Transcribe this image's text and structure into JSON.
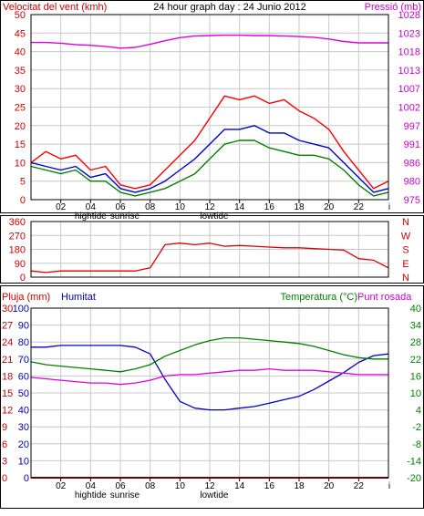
{
  "title": "24 hour graph day : 24 Junio 2012",
  "colors": {
    "frame": "#000000",
    "grid": "#c8c8c8",
    "wind_gust": "#ff0000",
    "wind_avg": "#0000cc",
    "wind_low": "#008000",
    "pressure": "#e000e0",
    "direction": "#dd0000",
    "rain": "#dd0000",
    "humidity": "#0000cc",
    "temperature": "#008000",
    "dewpoint": "#e000e0",
    "left_axis_red": "#cc0000",
    "left_axis_blue": "#0000aa",
    "right_axis_green": "#008000",
    "right_axis_magenta": "#cc00cc"
  },
  "x_axis": {
    "hour_labels": [
      "02",
      "04",
      "06",
      "08",
      "10",
      "12",
      "14",
      "16",
      "18",
      "20",
      "22"
    ],
    "end_tick": "i",
    "events_top": [
      {
        "label": "hightide",
        "hour": 4.0
      },
      {
        "label": "sunrise",
        "hour": 6.3
      },
      {
        "label": "lowtide",
        "hour": 12.3
      }
    ],
    "events_bottom": [
      {
        "label": "hightide",
        "hour": 4.0
      },
      {
        "label": "sunrise",
        "hour": 6.3
      },
      {
        "label": "lowtide",
        "hour": 12.3
      }
    ]
  },
  "chart_data": [
    {
      "type": "line",
      "panel": "wind-pressure",
      "title": "24 hour graph day : 24 Junio 2012",
      "left_label": "Velocitat del vent (kmh)",
      "right_label": "Pressió (mb)",
      "left_ticks": [
        "0",
        "5",
        "10",
        "15",
        "20",
        "25",
        "30",
        "35",
        "40",
        "45",
        "50"
      ],
      "right_ticks": [
        "975",
        "980",
        "986",
        "991",
        "997",
        "1002",
        "1007",
        "1013",
        "1018",
        "1023",
        "1028"
      ],
      "ylim_left": [
        0,
        50
      ],
      "ylim_right": [
        975,
        1028
      ],
      "x": [
        0,
        1,
        2,
        3,
        4,
        5,
        6,
        7,
        8,
        9,
        10,
        11,
        12,
        13,
        14,
        15,
        16,
        17,
        18,
        19,
        20,
        21,
        22,
        23,
        24
      ],
      "series": [
        {
          "name": "gust",
          "axis": "left",
          "values": [
            10,
            13,
            11,
            12,
            8,
            9,
            4,
            3,
            4,
            8,
            12,
            16,
            22,
            28,
            27,
            28,
            26,
            27,
            24,
            22,
            19,
            13,
            8,
            3,
            5
          ]
        },
        {
          "name": "average",
          "axis": "left",
          "values": [
            10,
            9,
            8,
            9,
            6,
            7,
            3,
            2,
            3,
            5,
            8,
            11,
            15,
            19,
            19,
            20,
            18,
            18,
            16,
            15,
            14,
            10,
            6,
            2,
            3
          ]
        },
        {
          "name": "low",
          "axis": "left",
          "values": [
            9,
            8,
            7,
            8,
            5,
            5,
            2,
            1,
            2,
            3,
            5,
            7,
            11,
            15,
            16,
            16,
            14,
            13,
            12,
            12,
            11,
            8,
            4,
            1,
            2
          ]
        },
        {
          "name": "pressure",
          "axis": "right",
          "values": [
            1020.0,
            1020.0,
            1019.8,
            1019.4,
            1019.2,
            1018.9,
            1018.4,
            1018.6,
            1019.5,
            1020.5,
            1021.4,
            1021.9,
            1022.0,
            1022.1,
            1022.1,
            1022.0,
            1022.0,
            1021.9,
            1021.7,
            1021.5,
            1021.0,
            1020.3,
            1019.9,
            1019.9,
            1019.9
          ]
        }
      ]
    },
    {
      "type": "line",
      "panel": "wind-direction",
      "left_ticks": [
        "0",
        "90",
        "180",
        "270",
        "360"
      ],
      "right_ticks": [
        "N",
        "E",
        "S",
        "W",
        "N"
      ],
      "ylim_left": [
        0,
        360
      ],
      "x": [
        0,
        1,
        2,
        3,
        4,
        5,
        6,
        7,
        8,
        9,
        10,
        11,
        12,
        13,
        14,
        15,
        16,
        17,
        18,
        19,
        20,
        21,
        22,
        23,
        24
      ],
      "series": [
        {
          "name": "direction",
          "values": [
            40,
            30,
            40,
            40,
            40,
            40,
            40,
            40,
            60,
            210,
            220,
            210,
            220,
            200,
            205,
            200,
            195,
            190,
            190,
            185,
            180,
            175,
            120,
            110,
            60
          ]
        }
      ]
    },
    {
      "type": "line",
      "panel": "temperature-humidity-rain",
      "left_label_rain": "Pluja (mm)",
      "left_label_humidity": "Humitat",
      "right_label_temp": "Temperatura (°C)",
      "right_label_dew": "Punt rosada",
      "left_ticks_rain": [
        "0",
        "3",
        "6",
        "9",
        "12",
        "15",
        "18",
        "21",
        "24",
        "27",
        "30"
      ],
      "left_ticks_humidity": [
        "0",
        "10",
        "20",
        "30",
        "40",
        "50",
        "60",
        "70",
        "80",
        "90",
        "100"
      ],
      "right_ticks": [
        "-20",
        "-14",
        "-8",
        "-2",
        "4",
        "10",
        "16",
        "22",
        "28",
        "34",
        "40"
      ],
      "ylim_rain": [
        0,
        30
      ],
      "ylim_humidity": [
        0,
        100
      ],
      "ylim_temp": [
        -20,
        40
      ],
      "x": [
        0,
        1,
        2,
        3,
        4,
        5,
        6,
        7,
        8,
        9,
        10,
        11,
        12,
        13,
        14,
        15,
        16,
        17,
        18,
        19,
        20,
        21,
        22,
        23,
        24
      ],
      "series": [
        {
          "name": "rain",
          "axis": "rain",
          "values": [
            0,
            0,
            0,
            0,
            0,
            0,
            0,
            0,
            0,
            0,
            0,
            0,
            0,
            0,
            0,
            0,
            0,
            0,
            0,
            0,
            0,
            0,
            0,
            0,
            0
          ]
        },
        {
          "name": "humidity",
          "axis": "humidity",
          "values": [
            77,
            77,
            78,
            78,
            78,
            78,
            78,
            77,
            73,
            58,
            45,
            41,
            40,
            40,
            41,
            42,
            44,
            46,
            48,
            52,
            57,
            62,
            68,
            72,
            73
          ]
        },
        {
          "name": "temperature",
          "axis": "temp",
          "values": [
            21,
            20,
            19.5,
            19,
            18.5,
            18,
            17.5,
            18.5,
            20,
            23,
            25,
            27,
            28.5,
            29.5,
            29.5,
            29,
            28.5,
            28,
            27.5,
            26.5,
            25,
            23.5,
            22.5,
            22,
            22
          ]
        },
        {
          "name": "dewpoint",
          "axis": "temp",
          "values": [
            15.5,
            15,
            14.5,
            14,
            13.5,
            13.5,
            13,
            13.5,
            14.5,
            16,
            16.5,
            16.5,
            17,
            17.5,
            18,
            18,
            18.5,
            18,
            18,
            18,
            17.5,
            17,
            16.5,
            16.5,
            16.5
          ]
        }
      ]
    }
  ]
}
